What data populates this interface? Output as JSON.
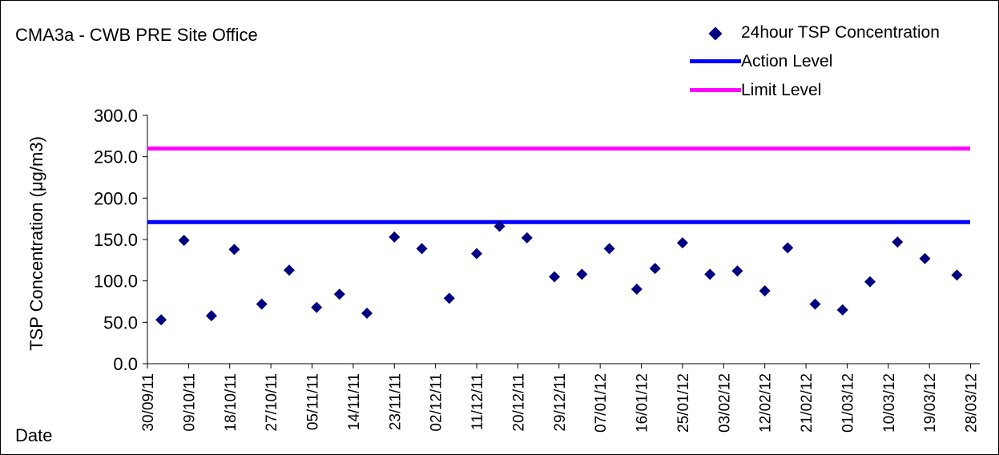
{
  "chart_data": {
    "type": "scatter",
    "title": "CMA3a - CWB PRE Site Office",
    "xlabel": "Date",
    "ylabel": "TSP Concentration (μg/m3)",
    "ylim": [
      0,
      300
    ],
    "y_ticks": [
      "0.0",
      "50.0",
      "100.0",
      "150.0",
      "200.0",
      "250.0",
      "300.0"
    ],
    "x_ticks": [
      "30/09/11",
      "09/10/11",
      "18/10/11",
      "27/10/11",
      "05/11/11",
      "14/11/11",
      "23/11/11",
      "02/12/11",
      "11/12/11",
      "20/12/11",
      "29/12/11",
      "07/01/12",
      "16/01/12",
      "25/01/12",
      "03/02/12",
      "12/02/12",
      "21/02/12",
      "01/03/12",
      "10/03/12",
      "19/03/12",
      "28/03/12"
    ],
    "xlim": [
      "2011-09-30",
      "2012-03-30"
    ],
    "series": [
      {
        "name": "24hour TSP Concentration",
        "color": "#000080",
        "marker": "diamond",
        "points": [
          [
            "2011-10-03",
            53
          ],
          [
            "2011-10-08",
            149
          ],
          [
            "2011-10-14",
            58
          ],
          [
            "2011-10-19",
            138
          ],
          [
            "2011-10-25",
            72
          ],
          [
            "2011-10-31",
            113
          ],
          [
            "2011-11-06",
            68
          ],
          [
            "2011-11-11",
            84
          ],
          [
            "2011-11-17",
            61
          ],
          [
            "2011-11-23",
            153
          ],
          [
            "2011-11-29",
            139
          ],
          [
            "2011-12-05",
            79
          ],
          [
            "2011-12-11",
            133
          ],
          [
            "2011-12-16",
            166
          ],
          [
            "2011-12-22",
            152
          ],
          [
            "2011-12-28",
            105
          ],
          [
            "2012-01-03",
            108
          ],
          [
            "2012-01-09",
            139
          ],
          [
            "2012-01-15",
            90
          ],
          [
            "2012-01-19",
            115
          ],
          [
            "2012-01-25",
            146
          ],
          [
            "2012-01-31",
            108
          ],
          [
            "2012-02-06",
            112
          ],
          [
            "2012-02-12",
            88
          ],
          [
            "2012-02-17",
            140
          ],
          [
            "2012-02-23",
            72
          ],
          [
            "2012-02-29",
            65
          ],
          [
            "2012-03-06",
            99
          ],
          [
            "2012-03-12",
            147
          ],
          [
            "2012-03-18",
            127
          ],
          [
            "2012-03-25",
            107
          ]
        ]
      },
      {
        "name": "Action Level",
        "color": "#0000ff",
        "type": "line",
        "value": 171
      },
      {
        "name": "Limit Level",
        "color": "#ff00ff",
        "type": "line",
        "value": 260
      }
    ],
    "grid": false,
    "legend_position": "top-right"
  }
}
